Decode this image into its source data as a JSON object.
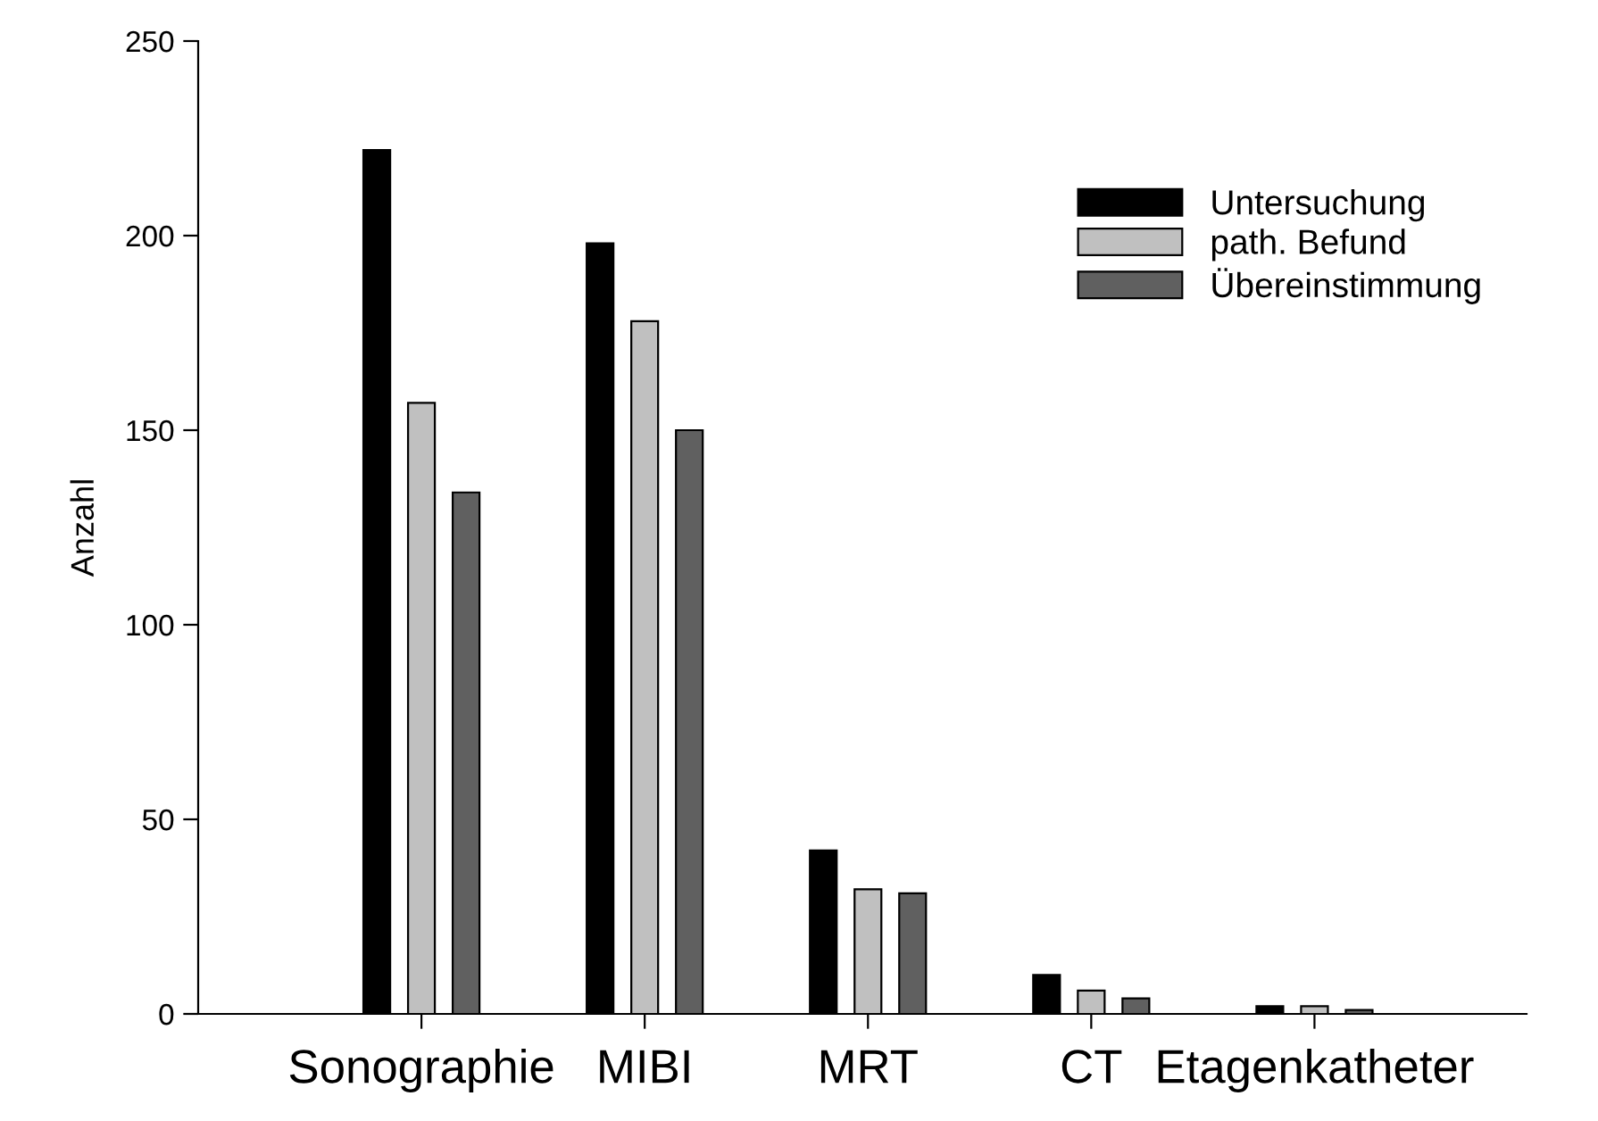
{
  "chart_data": {
    "type": "bar",
    "ylabel": "Anzahl",
    "categories": [
      "Sonographie",
      "MIBI",
      "MRT",
      "CT",
      "Etagenkatheter"
    ],
    "series": [
      {
        "name": "Untersuchung",
        "color": "#000000",
        "values": [
          222,
          198,
          42,
          10,
          2
        ]
      },
      {
        "name": "path. Befund",
        "color": "#c0c0c0",
        "values": [
          157,
          178,
          32,
          6,
          2
        ]
      },
      {
        "name": "Übereinstimmung",
        "color": "#606060",
        "values": [
          134,
          150,
          31,
          4,
          1
        ]
      }
    ],
    "ylim": [
      0,
      250
    ],
    "yticks": [
      0,
      50,
      100,
      150,
      200,
      250
    ],
    "grid": false,
    "legend": "top right"
  }
}
